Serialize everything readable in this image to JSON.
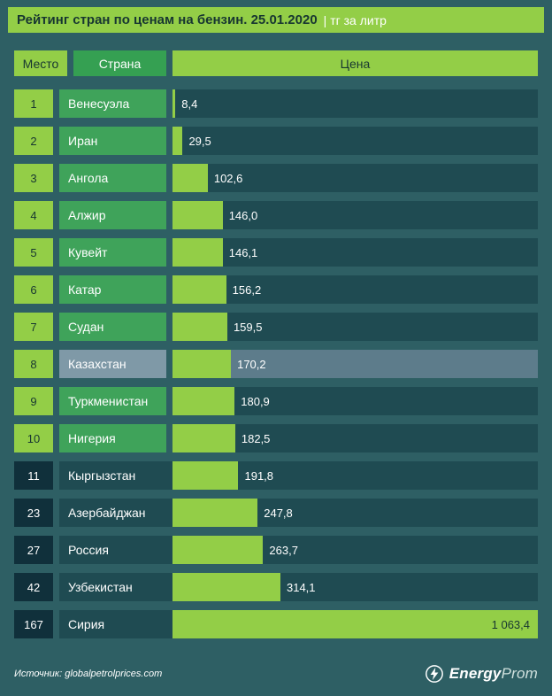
{
  "header": {
    "title": "Рейтинг стран по ценам на бензин. 25.01.2020",
    "unit": "| тг за литр"
  },
  "table_header": {
    "rank": "Место",
    "country": "Страна",
    "price": "Цена"
  },
  "footer": {
    "source": "Источник: globalpetrolprices.com",
    "brand_bold": "Energy",
    "brand_light": "Prom"
  },
  "colors": {
    "background": "#2e5f64",
    "track": "#1f4b52",
    "bar_green": "#93ce47",
    "country_green": "#3fa35a",
    "header_green": "#35a052",
    "dark_badge": "#10303b",
    "dark_text": "#173631",
    "highlight_box": "#7f99a7",
    "highlight_track": "#5d7c8b"
  },
  "chart_data": {
    "type": "bar",
    "title": "Рейтинг стран по ценам на бензин. 25.01.2020",
    "unit": "тг за литр",
    "max_value": 1063.4,
    "categories": [
      "Венесуэла",
      "Иран",
      "Ангола",
      "Алжир",
      "Кувейт",
      "Катар",
      "Судан",
      "Казахстан",
      "Туркменистан",
      "Нигерия",
      "Кыргызстан",
      "Азербайджан",
      "Россия",
      "Узбекистан",
      "Сирия"
    ],
    "values": [
      8.4,
      29.5,
      102.6,
      146.0,
      146.1,
      156.2,
      159.5,
      170.2,
      180.9,
      182.5,
      191.8,
      247.8,
      263.7,
      314.1,
      1063.4
    ],
    "ranks": [
      1,
      2,
      3,
      4,
      5,
      6,
      7,
      8,
      9,
      10,
      11,
      23,
      27,
      42,
      167
    ],
    "rows": [
      {
        "rank": "1",
        "country": "Венесуэла",
        "value": 8.4,
        "label": "8,4",
        "variant": "green"
      },
      {
        "rank": "2",
        "country": "Иран",
        "value": 29.5,
        "label": "29,5",
        "variant": "green"
      },
      {
        "rank": "3",
        "country": "Ангола",
        "value": 102.6,
        "label": "102,6",
        "variant": "green"
      },
      {
        "rank": "4",
        "country": "Алжир",
        "value": 146.0,
        "label": "146,0",
        "variant": "green"
      },
      {
        "rank": "5",
        "country": "Кувейт",
        "value": 146.1,
        "label": "146,1",
        "variant": "green"
      },
      {
        "rank": "6",
        "country": "Катар",
        "value": 156.2,
        "label": "156,2",
        "variant": "green"
      },
      {
        "rank": "7",
        "country": "Судан",
        "value": 159.5,
        "label": "159,5",
        "variant": "green"
      },
      {
        "rank": "8",
        "country": "Казахстан",
        "value": 170.2,
        "label": "170,2",
        "variant": "highlight"
      },
      {
        "rank": "9",
        "country": "Туркменистан",
        "value": 180.9,
        "label": "180,9",
        "variant": "green"
      },
      {
        "rank": "10",
        "country": "Нигерия",
        "value": 182.5,
        "label": "182,5",
        "variant": "green"
      },
      {
        "rank": "11",
        "country": "Кыргызстан",
        "value": 191.8,
        "label": "191,8",
        "variant": "dark"
      },
      {
        "rank": "23",
        "country": "Азербайджан",
        "value": 247.8,
        "label": "247,8",
        "variant": "dark"
      },
      {
        "rank": "27",
        "country": "Россия",
        "value": 263.7,
        "label": "263,7",
        "variant": "dark"
      },
      {
        "rank": "42",
        "country": "Узбекистан",
        "value": 314.1,
        "label": "314,1",
        "variant": "dark"
      },
      {
        "rank": "167",
        "country": "Сирия",
        "value": 1063.4,
        "label": "1 063,4",
        "variant": "dark",
        "label_inside": true
      }
    ]
  }
}
